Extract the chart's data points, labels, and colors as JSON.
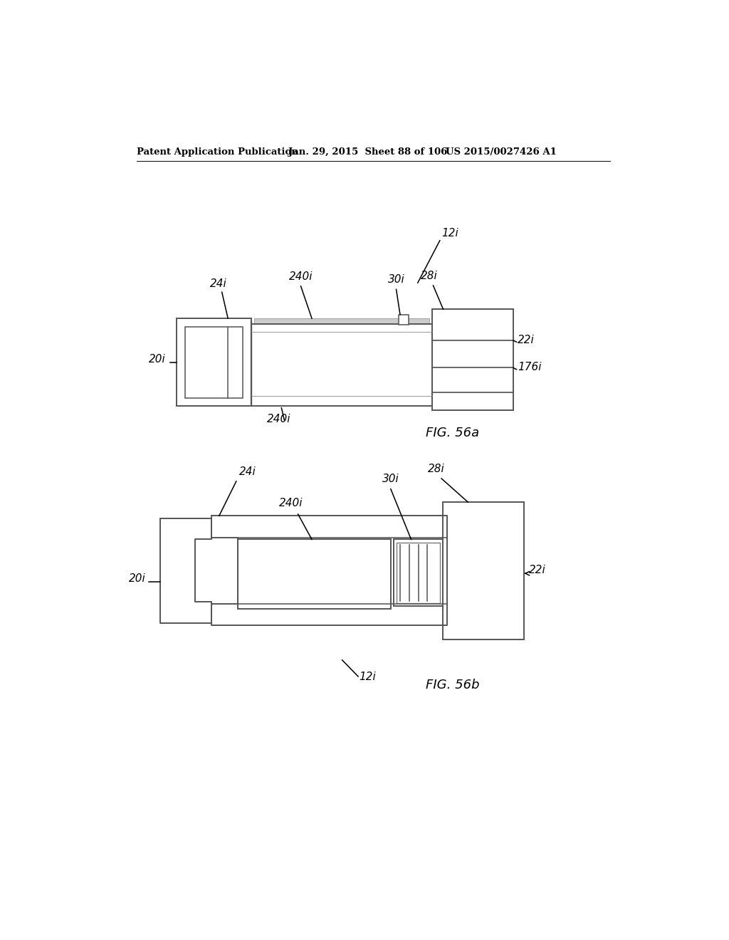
{
  "bg_color": "#ffffff",
  "header_left": "Patent Application Publication",
  "header_mid": "Jan. 29, 2015  Sheet 88 of 106",
  "header_right": "US 2015/0027426 A1",
  "fig_a_label": "FIG. 56a",
  "fig_b_label": "FIG. 56b"
}
